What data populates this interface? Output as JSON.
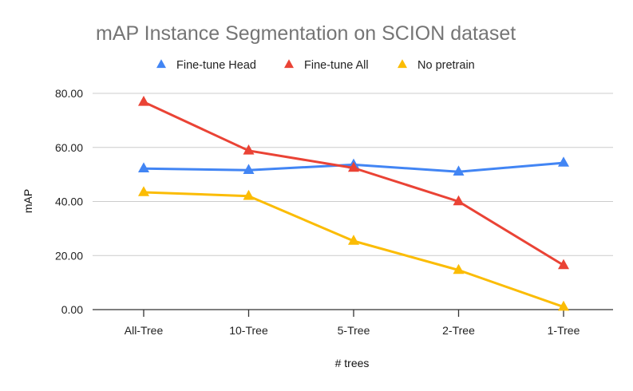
{
  "chart_data": {
    "type": "line",
    "title": "mAP Instance Segmentation on SCION dataset",
    "xlabel": "# trees",
    "ylabel": "mAP",
    "categories": [
      "All-Tree",
      "10-Tree",
      "5-Tree",
      "2-Tree",
      "1-Tree"
    ],
    "ylim": [
      0,
      80
    ],
    "yticks": [
      0,
      20,
      40,
      60,
      80
    ],
    "ytick_labels": [
      "0.00",
      "20.00",
      "40.00",
      "60.00",
      "80.00"
    ],
    "grid": true,
    "legend_position": "top-center",
    "marker": "triangle",
    "series": [
      {
        "name": "Fine-tune Head",
        "color": "#4285f4",
        "values": [
          52.2,
          51.6,
          53.6,
          51.0,
          54.3
        ]
      },
      {
        "name": "Fine-tune All",
        "color": "#ea4335",
        "values": [
          76.8,
          58.8,
          52.4,
          40.0,
          16.4
        ]
      },
      {
        "name": "No pretrain",
        "color": "#fbbc04",
        "values": [
          43.4,
          42.0,
          25.4,
          14.6,
          1.0
        ]
      }
    ]
  }
}
